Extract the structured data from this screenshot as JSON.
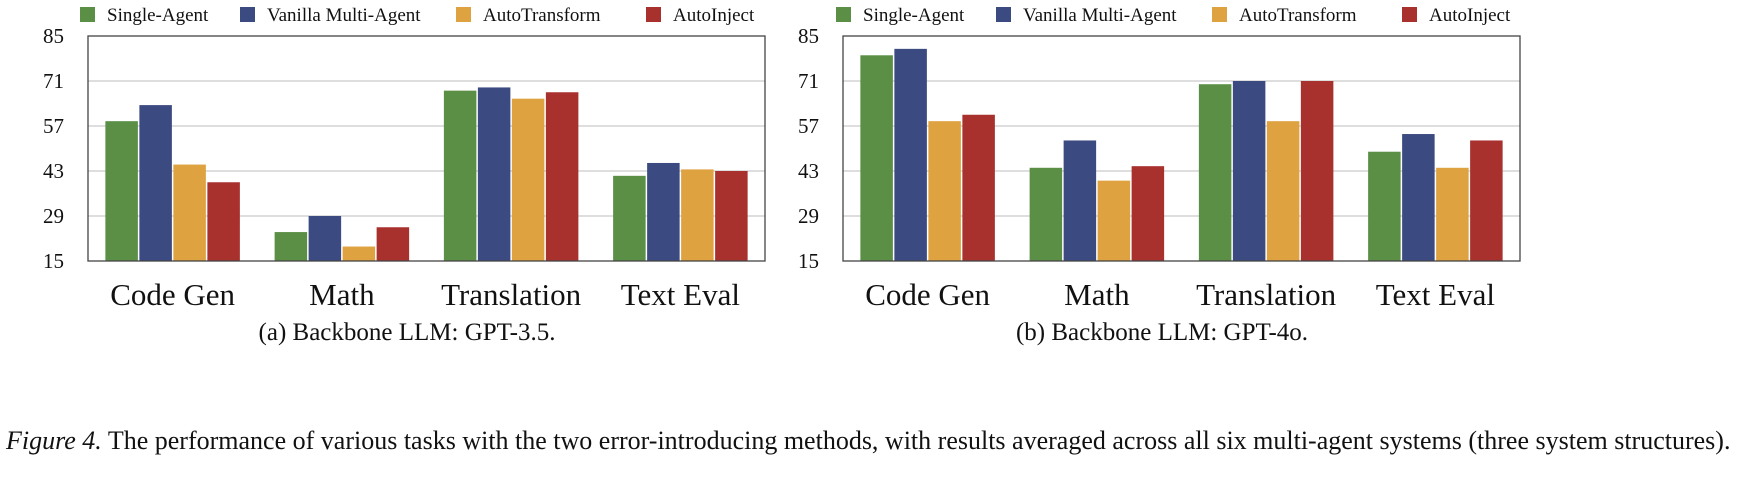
{
  "chart_data": [
    {
      "type": "bar",
      "title": "(a) Backbone LLM: GPT-3.5.",
      "categories": [
        "Code Gen",
        "Math",
        "Translation",
        "Text Eval"
      ],
      "yticks": [
        15,
        29,
        43,
        57,
        71,
        85
      ],
      "ylim": [
        15,
        85
      ],
      "grid": true,
      "legend_position": "top",
      "series": [
        {
          "name": "Single-Agent",
          "color": "#5a8f45",
          "values": [
            58.5,
            24.0,
            68.0,
            41.5
          ]
        },
        {
          "name": "Vanilla Multi-Agent",
          "color": "#3b4a80",
          "values": [
            63.5,
            29.0,
            69.0,
            45.5
          ]
        },
        {
          "name": "AutoTransform",
          "color": "#dfa241",
          "values": [
            45.0,
            19.5,
            65.5,
            43.5
          ]
        },
        {
          "name": "AutoInject",
          "color": "#a8312e",
          "values": [
            39.5,
            25.5,
            67.5,
            43.0
          ]
        }
      ]
    },
    {
      "type": "bar",
      "title": "(b) Backbone LLM: GPT-4o.",
      "categories": [
        "Code Gen",
        "Math",
        "Translation",
        "Text Eval"
      ],
      "yticks": [
        15,
        29,
        43,
        57,
        71,
        85
      ],
      "ylim": [
        15,
        85
      ],
      "grid": true,
      "legend_position": "top",
      "series": [
        {
          "name": "Single-Agent",
          "color": "#5a8f45",
          "values": [
            79.0,
            44.0,
            70.0,
            49.0
          ]
        },
        {
          "name": "Vanilla Multi-Agent",
          "color": "#3b4a80",
          "values": [
            81.0,
            52.5,
            71.0,
            54.5
          ]
        },
        {
          "name": "AutoTransform",
          "color": "#dfa241",
          "values": [
            58.5,
            40.0,
            58.5,
            44.0
          ]
        },
        {
          "name": "AutoInject",
          "color": "#a8312e",
          "values": [
            60.5,
            44.5,
            71.0,
            52.5
          ]
        }
      ]
    }
  ],
  "caption": {
    "label": "Figure 4.",
    "text": " The performance of various tasks with the two error-introducing methods, with results averaged across all six multi-agent systems (three system structures)."
  }
}
